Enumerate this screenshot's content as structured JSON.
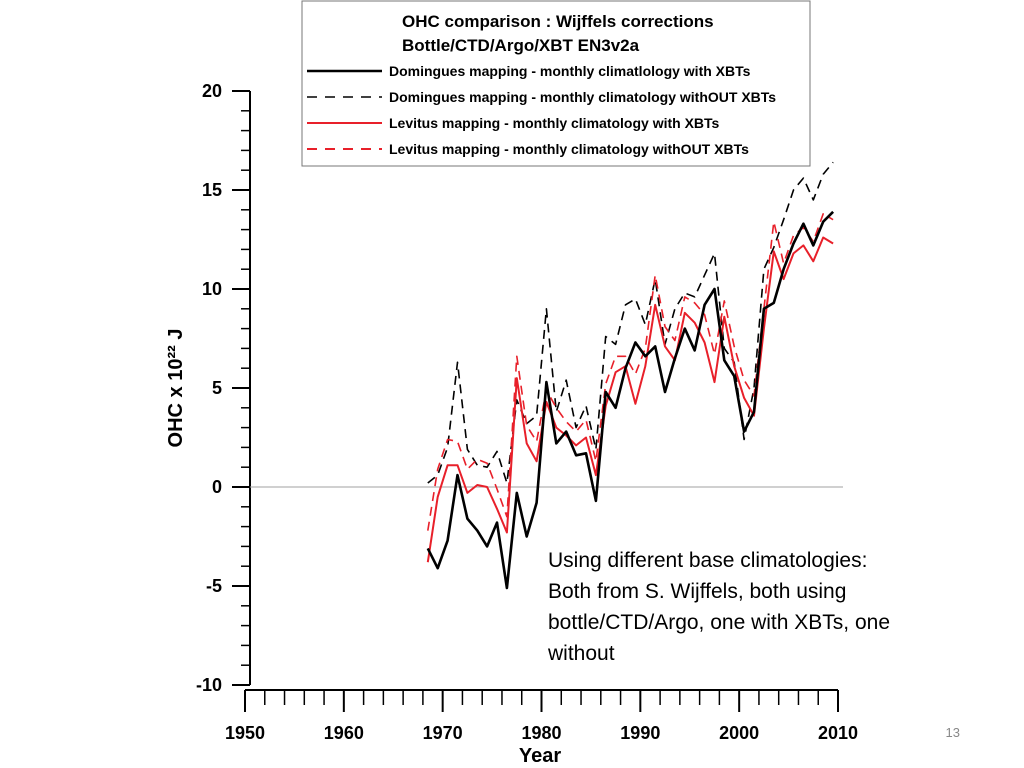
{
  "slide": {
    "number": "13"
  },
  "annotation": {
    "lines": [
      "Using different base climatologies:",
      "Both from S. Wijffels, both using",
      "bottle/CTD/Argo, one with XBTs, one",
      "without"
    ]
  },
  "chart_data": {
    "type": "line",
    "title": "OHC comparison : Wijffels corrections",
    "subtitle": "Bottle/CTD/Argo/XBT EN3v2a",
    "xlabel": "Year",
    "ylabel": "OHC x 10²² J",
    "xlim": [
      1950,
      2010
    ],
    "ylim": [
      -10,
      20
    ],
    "x_ticks": [
      "1950",
      "1960",
      "1970",
      "1980",
      "1990",
      "2000",
      "2010"
    ],
    "y_ticks": [
      "20",
      "15",
      "10",
      "5",
      "0",
      "-5",
      "-10"
    ],
    "zero_line": true,
    "grid": false,
    "legend_position": "top",
    "series": [
      {
        "name": "Domingues mapping - monthly climatlology with XBTs",
        "color": "#000000",
        "dash": "solid",
        "x": [
          1968.5,
          1969.5,
          1970.5,
          1971.5,
          1972.5,
          1973.5,
          1974.5,
          1975.5,
          1976.5,
          1977.5,
          1978.5,
          1979.5,
          1980.5,
          1981.5,
          1982.5,
          1983.5,
          1984.5,
          1985.5,
          1986.5,
          1987.5,
          1988.5,
          1989.5,
          1990.5,
          1991.5,
          1992.5,
          1993.5,
          1994.5,
          1995.5,
          1996.5,
          1997.5,
          1998.5,
          1999.5,
          2000.5,
          2001.5,
          2002.5,
          2003.5,
          2004.5,
          2005.5,
          2006.5,
          2007.5,
          2008.5,
          2009.5
        ],
        "values": [
          -3.1,
          -4.1,
          -2.7,
          0.6,
          -1.6,
          -2.2,
          -3.0,
          -1.8,
          -5.1,
          -0.3,
          -2.5,
          -0.8,
          5.3,
          2.2,
          2.8,
          1.6,
          1.7,
          -0.7,
          4.8,
          4.0,
          6.0,
          7.3,
          6.6,
          7.1,
          4.8,
          6.5,
          8.0,
          6.9,
          9.2,
          10.0,
          6.4,
          5.6,
          2.8,
          3.8,
          9.0,
          9.3,
          11.0,
          12.3,
          13.3,
          12.2,
          13.4,
          13.9
        ]
      },
      {
        "name": "Domingues mapping - monthly climatology withOUT XBTs",
        "color": "#000000",
        "dash": "dashed",
        "x": [
          1968.5,
          1969.5,
          1970.5,
          1971.5,
          1972.5,
          1973.5,
          1974.5,
          1975.5,
          1976.5,
          1977.5,
          1978.5,
          1979.5,
          1980.5,
          1981.5,
          1982.5,
          1983.5,
          1984.5,
          1985.5,
          1986.5,
          1987.5,
          1988.5,
          1989.5,
          1990.5,
          1991.5,
          1992.5,
          1993.5,
          1994.5,
          1995.5,
          1996.5,
          1997.5,
          1998.5,
          1999.5,
          2000.5,
          2001.5,
          2002.5,
          2003.5,
          2004.5,
          2005.5,
          2006.5,
          2007.5,
          2008.5,
          2009.5
        ],
        "values": [
          0.2,
          0.6,
          2.0,
          6.3,
          1.9,
          1.1,
          1.0,
          1.8,
          0.2,
          4.4,
          3.2,
          3.6,
          9.0,
          3.8,
          5.4,
          3.0,
          4.1,
          1.9,
          7.6,
          7.2,
          9.2,
          9.5,
          8.2,
          10.5,
          7.2,
          9.0,
          9.8,
          9.6,
          10.7,
          11.8,
          7.0,
          6.3,
          2.4,
          5.0,
          11.0,
          12.1,
          13.5,
          15.0,
          15.6,
          14.5,
          15.8,
          16.4
        ]
      },
      {
        "name": "Levitus mapping - monthly climatology with XBTs",
        "color": "#e8202a",
        "dash": "solid",
        "x": [
          1968.5,
          1969.5,
          1970.5,
          1971.5,
          1972.5,
          1973.5,
          1974.5,
          1975.5,
          1976.5,
          1977.5,
          1978.5,
          1979.5,
          1980.5,
          1981.5,
          1982.5,
          1983.5,
          1984.5,
          1985.5,
          1986.5,
          1987.5,
          1988.5,
          1989.5,
          1990.5,
          1991.5,
          1992.5,
          1993.5,
          1994.5,
          1995.5,
          1996.5,
          1997.5,
          1998.5,
          1999.5,
          2000.5,
          2001.5,
          2002.5,
          2003.5,
          2004.5,
          2005.5,
          2006.5,
          2007.5,
          2008.5,
          2009.5
        ],
        "values": [
          -3.8,
          -0.5,
          1.1,
          1.1,
          -0.3,
          0.1,
          0.0,
          -1.1,
          -2.3,
          5.5,
          2.2,
          1.3,
          4.3,
          3.0,
          2.6,
          2.1,
          2.5,
          0.6,
          4.1,
          5.8,
          6.1,
          4.2,
          6.1,
          9.2,
          7.1,
          6.4,
          8.8,
          8.3,
          7.3,
          5.3,
          8.6,
          6.1,
          4.5,
          3.6,
          8.0,
          11.9,
          10.5,
          11.8,
          12.2,
          11.4,
          12.6,
          12.3
        ]
      },
      {
        "name": "Levitus mapping - monthly climatology withOUT XBTs",
        "color": "#e8202a",
        "dash": "dashed",
        "x": [
          1968.5,
          1969.5,
          1970.5,
          1971.5,
          1972.5,
          1973.5,
          1974.5,
          1975.5,
          1976.5,
          1977.5,
          1978.5,
          1979.5,
          1980.5,
          1981.5,
          1982.5,
          1983.5,
          1984.5,
          1985.5,
          1986.5,
          1987.5,
          1988.5,
          1989.5,
          1990.5,
          1991.5,
          1992.5,
          1993.5,
          1994.5,
          1995.5,
          1996.5,
          1997.5,
          1998.5,
          1999.5,
          2000.5,
          2001.5,
          2002.5,
          2003.5,
          2004.5,
          2005.5,
          2006.5,
          2007.5,
          2008.5,
          2009.5
        ],
        "values": [
          -2.2,
          0.9,
          2.4,
          2.3,
          0.9,
          1.4,
          1.2,
          -0.1,
          -1.5,
          6.6,
          3.1,
          2.3,
          4.9,
          4.0,
          3.3,
          2.8,
          3.4,
          1.3,
          5.2,
          6.6,
          6.6,
          5.7,
          7.0,
          10.7,
          8.1,
          7.4,
          9.6,
          9.3,
          8.7,
          6.7,
          9.4,
          7.1,
          5.4,
          4.6,
          9.0,
          13.4,
          11.3,
          12.7,
          13.1,
          12.4,
          13.8,
          13.5
        ]
      }
    ]
  }
}
